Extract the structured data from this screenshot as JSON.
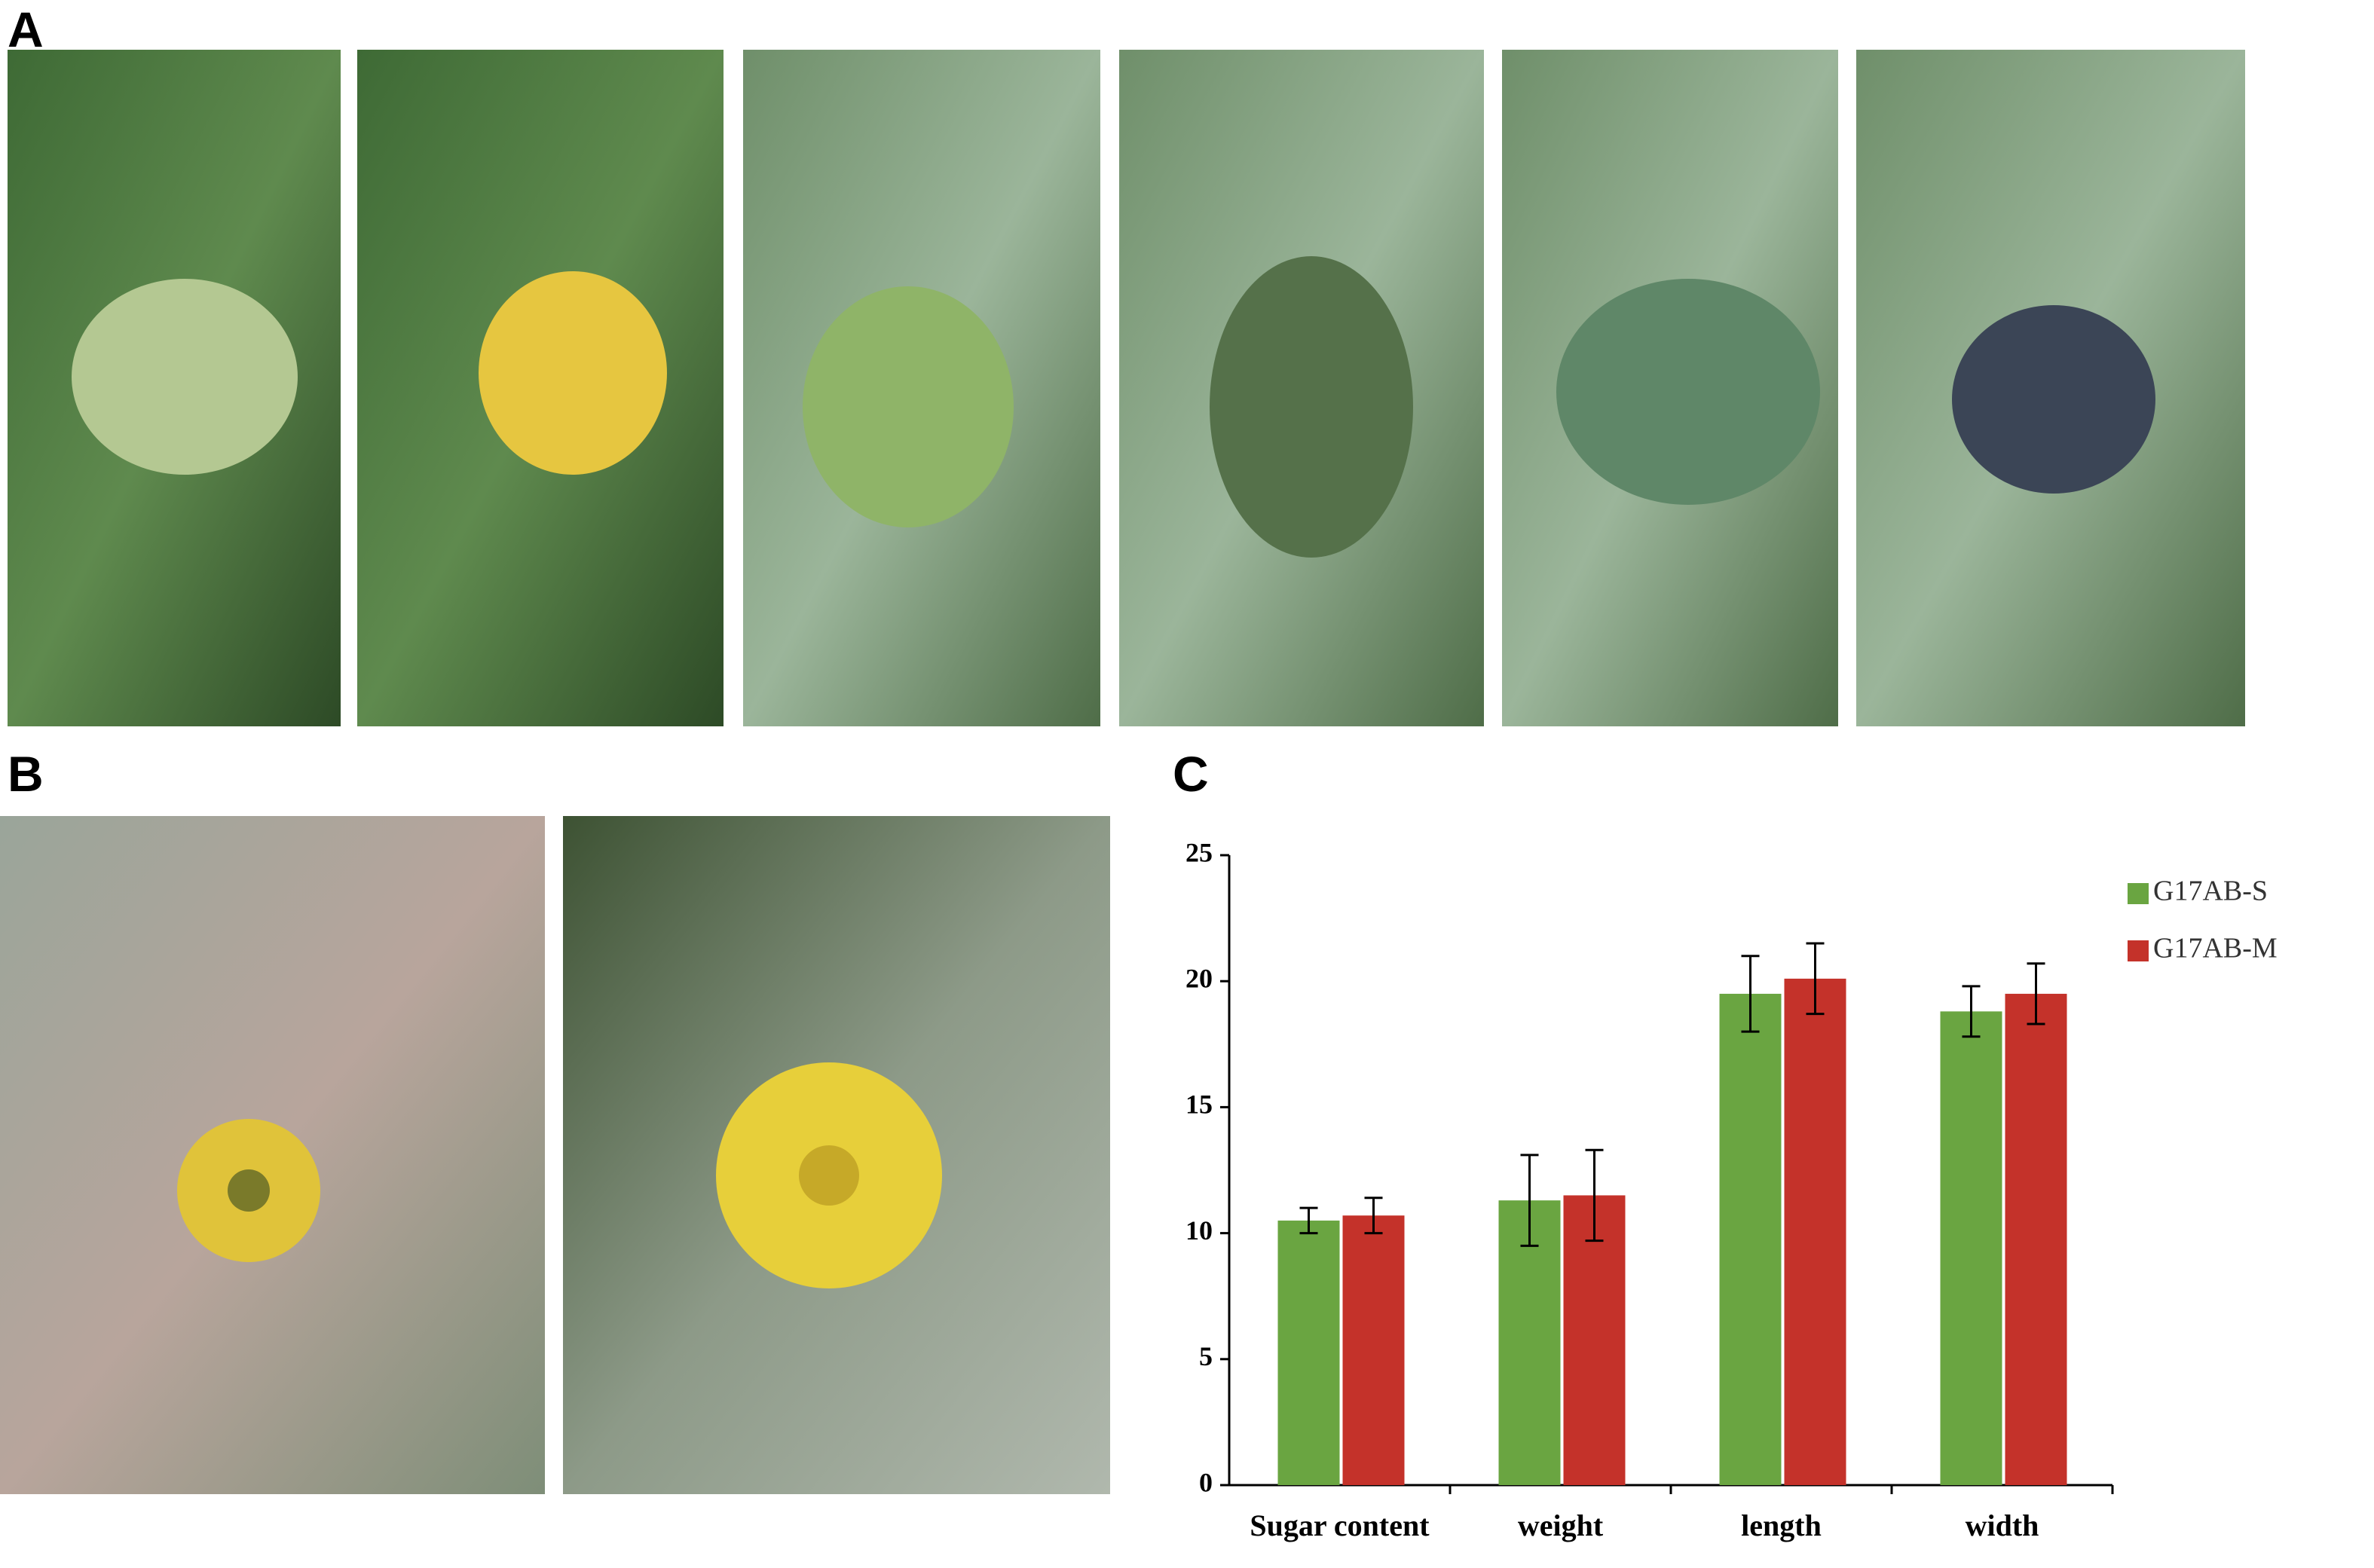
{
  "panels": {
    "a": "A",
    "b": "B",
    "c": "C"
  },
  "chart_data": {
    "type": "bar",
    "categories": [
      "Sugar content",
      "weight",
      "length",
      "width"
    ],
    "series": [
      {
        "name": "G17AB-S",
        "color": "#6aa541",
        "values": [
          10.5,
          11.3,
          19.5,
          18.8
        ],
        "errors": [
          0.5,
          1.8,
          1.5,
          1.0
        ]
      },
      {
        "name": "G17AB-M",
        "color": "#c4322a",
        "values": [
          10.7,
          11.5,
          20.1,
          19.5
        ],
        "errors": [
          0.7,
          1.8,
          1.4,
          1.2
        ]
      }
    ],
    "ylim": [
      0,
      25
    ],
    "yticks": [
      0,
      5,
      10,
      15,
      20,
      25
    ],
    "grid": false,
    "legend": "upper right"
  }
}
